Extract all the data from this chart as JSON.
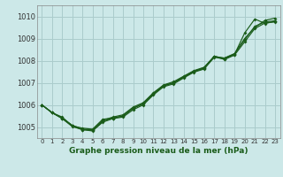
{
  "title": "Graphe pression niveau de la mer (hPa)",
  "bg_color": "#cce8e8",
  "grid_color": "#aacccc",
  "line_color": "#1a5c1a",
  "xlim": [
    -0.5,
    23.5
  ],
  "ylim": [
    1004.5,
    1010.5
  ],
  "yticks": [
    1005,
    1006,
    1007,
    1008,
    1009,
    1010
  ],
  "xticks": [
    0,
    1,
    2,
    3,
    4,
    5,
    6,
    7,
    8,
    9,
    10,
    11,
    12,
    13,
    14,
    15,
    16,
    17,
    18,
    19,
    20,
    21,
    22,
    23
  ],
  "series": [
    [
      1006.0,
      1005.65,
      1005.45,
      1005.05,
      1004.95,
      1004.9,
      1005.35,
      1005.4,
      1005.5,
      1005.85,
      1006.05,
      1006.5,
      1006.85,
      1007.0,
      1007.25,
      1007.5,
      1007.65,
      1008.2,
      1008.05,
      1008.25,
      1008.85,
      1009.45,
      1009.7,
      1009.75
    ],
    [
      1006.0,
      1005.65,
      1005.4,
      1005.08,
      1004.9,
      1004.88,
      1005.3,
      1005.45,
      1005.55,
      1005.9,
      1006.1,
      1006.55,
      1006.9,
      1007.05,
      1007.3,
      1007.55,
      1007.7,
      1008.2,
      1008.1,
      1008.3,
      1008.95,
      1009.55,
      1009.75,
      1009.8
    ],
    [
      1006.0,
      1005.65,
      1005.4,
      1005.05,
      1004.88,
      1004.85,
      1005.25,
      1005.4,
      1005.5,
      1005.85,
      1006.05,
      1006.5,
      1006.88,
      1007.0,
      1007.28,
      1007.52,
      1007.68,
      1008.18,
      1008.12,
      1008.32,
      1009.0,
      1009.5,
      1009.82,
      1009.92
    ],
    [
      1006.0,
      1005.65,
      1005.38,
      1005.02,
      1004.88,
      1004.82,
      1005.22,
      1005.38,
      1005.45,
      1005.78,
      1006.0,
      1006.45,
      1006.82,
      1006.95,
      1007.22,
      1007.48,
      1007.62,
      1008.15,
      1008.08,
      1008.28,
      1009.25,
      1009.88,
      1009.68,
      1009.78
    ]
  ]
}
